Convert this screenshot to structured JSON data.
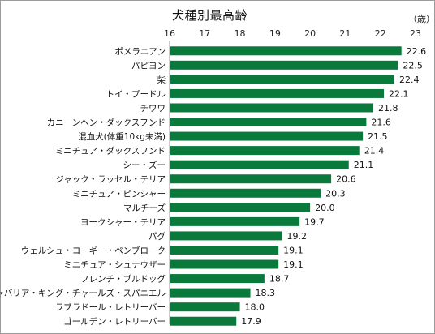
{
  "chart_data": {
    "type": "bar",
    "orientation": "horizontal",
    "title": "犬種別最高齢",
    "unit": "（歳）",
    "xlim": [
      16,
      23
    ],
    "xticks": [
      "16",
      "17",
      "18",
      "19",
      "20",
      "21",
      "22",
      "23"
    ],
    "grid": false,
    "bar_color": "#0a7a3c",
    "categories": [
      "ポメラニアン",
      "パピヨン",
      "柴",
      "トイ・プードル",
      "チワワ",
      "カニーンヘン・ダックスフンド",
      "混血犬(体重10kg未満)",
      "ミニチュア・ダックスフンド",
      "シー・ズー",
      "ジャック・ラッセル・テリア",
      "ミニチュア・ピンシャー",
      "マルチーズ",
      "ヨークシャー・テリア",
      "パグ",
      "ウェルシュ・コーギー・ペンブローク",
      "ミニチュア・シュナウザー",
      "フレンチ・ブルドッグ",
      "キャバリア・キング・チャールズ・スパニエル",
      "ラブラドール・レトリーバー",
      "ゴールデン・レトリーバー"
    ],
    "values": [
      22.6,
      22.5,
      22.4,
      22.1,
      21.8,
      21.6,
      21.5,
      21.4,
      21.1,
      20.6,
      20.3,
      20.0,
      19.7,
      19.2,
      19.1,
      19.1,
      18.7,
      18.3,
      18.0,
      17.9
    ],
    "value_labels": [
      "22.6",
      "22.5",
      "22.4",
      "22.1",
      "21.8",
      "21.6",
      "21.5",
      "21.4",
      "21.1",
      "20.6",
      "20.3",
      "20.0",
      "19.7",
      "19.2",
      "19.1",
      "19.1",
      "18.7",
      "18.3",
      "18.0",
      "17.9"
    ]
  }
}
